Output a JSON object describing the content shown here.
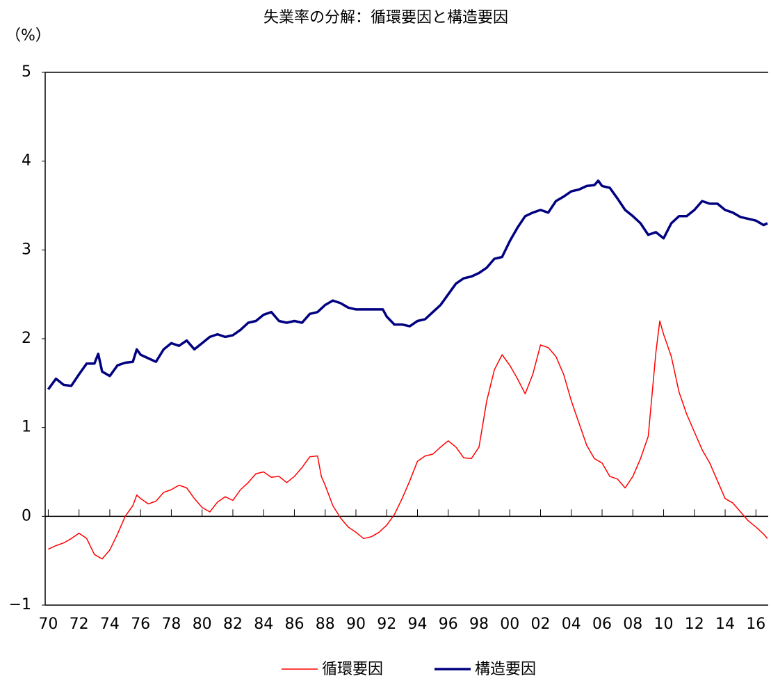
{
  "chart_data": {
    "type": "line",
    "title": "失業率の分解：循環要因と構造要因",
    "y_label": "（%）",
    "xlim": [
      1969.8,
      2016.8
    ],
    "xticks": [
      {
        "value": 1970,
        "label": "70"
      },
      {
        "value": 1972,
        "label": "72"
      },
      {
        "value": 1974,
        "label": "74"
      },
      {
        "value": 1976,
        "label": "76"
      },
      {
        "value": 1978,
        "label": "78"
      },
      {
        "value": 1980,
        "label": "80"
      },
      {
        "value": 1982,
        "label": "82"
      },
      {
        "value": 1984,
        "label": "84"
      },
      {
        "value": 1986,
        "label": "86"
      },
      {
        "value": 1988,
        "label": "88"
      },
      {
        "value": 1990,
        "label": "90"
      },
      {
        "value": 1992,
        "label": "92"
      },
      {
        "value": 1994,
        "label": "94"
      },
      {
        "value": 1996,
        "label": "96"
      },
      {
        "value": 1998,
        "label": "98"
      },
      {
        "value": 2000,
        "label": "00"
      },
      {
        "value": 2002,
        "label": "02"
      },
      {
        "value": 2004,
        "label": "04"
      },
      {
        "value": 2006,
        "label": "06"
      },
      {
        "value": 2008,
        "label": "08"
      },
      {
        "value": 2010,
        "label": "10"
      },
      {
        "value": 2012,
        "label": "12"
      },
      {
        "value": 2014,
        "label": "14"
      },
      {
        "value": 2016,
        "label": "16"
      }
    ],
    "ylim": [
      -1,
      5
    ],
    "yticks": [
      {
        "value": -1,
        "label": "−1"
      },
      0,
      1,
      2,
      3,
      4,
      5
    ],
    "series": [
      {
        "name": "循環要因",
        "color": "#ff0000",
        "width": 1.5,
        "x": [
          1970.0,
          1970.5,
          1971.0,
          1971.5,
          1972.0,
          1972.5,
          1973.0,
          1973.5,
          1974.0,
          1974.5,
          1975.0,
          1975.5,
          1975.75,
          1976.0,
          1976.5,
          1977.0,
          1977.5,
          1978.0,
          1978.5,
          1979.0,
          1979.5,
          1980.0,
          1980.5,
          1981.0,
          1981.5,
          1982.0,
          1982.5,
          1983.0,
          1983.5,
          1984.0,
          1984.5,
          1985.0,
          1985.5,
          1986.0,
          1986.5,
          1987.0,
          1987.5,
          1987.75,
          1988.0,
          1988.5,
          1989.0,
          1989.5,
          1990.0,
          1990.5,
          1991.0,
          1991.5,
          1992.0,
          1992.5,
          1993.0,
          1993.5,
          1994.0,
          1994.5,
          1995.0,
          1995.5,
          1996.0,
          1996.5,
          1997.0,
          1997.5,
          1998.0,
          1998.5,
          1999.0,
          1999.5,
          2000.0,
          2000.5,
          2001.0,
          2001.5,
          2002.0,
          2002.5,
          2003.0,
          2003.5,
          2004.0,
          2004.5,
          2005.0,
          2005.5,
          2006.0,
          2006.5,
          2007.0,
          2007.5,
          2008.0,
          2008.5,
          2009.0,
          2009.5,
          2009.75,
          2010.0,
          2010.5,
          2011.0,
          2011.5,
          2012.0,
          2012.5,
          2013.0,
          2013.5,
          2014.0,
          2014.5,
          2015.0,
          2015.5,
          2016.0,
          2016.5,
          2016.75
        ],
        "values": [
          -0.37,
          -0.33,
          -0.3,
          -0.25,
          -0.19,
          -0.25,
          -0.43,
          -0.48,
          -0.38,
          -0.2,
          0.0,
          0.12,
          0.24,
          0.2,
          0.14,
          0.17,
          0.27,
          0.3,
          0.35,
          0.32,
          0.2,
          0.1,
          0.05,
          0.16,
          0.22,
          0.18,
          0.3,
          0.38,
          0.48,
          0.5,
          0.44,
          0.45,
          0.38,
          0.45,
          0.55,
          0.67,
          0.68,
          0.45,
          0.35,
          0.12,
          -0.02,
          -0.12,
          -0.18,
          -0.25,
          -0.23,
          -0.18,
          -0.1,
          0.02,
          0.2,
          0.4,
          0.62,
          0.68,
          0.7,
          0.78,
          0.85,
          0.78,
          0.66,
          0.65,
          0.78,
          1.3,
          1.65,
          1.82,
          1.7,
          1.55,
          1.38,
          1.6,
          1.93,
          1.9,
          1.8,
          1.6,
          1.3,
          1.05,
          0.8,
          0.65,
          0.6,
          0.45,
          0.42,
          0.32,
          0.45,
          0.65,
          0.9,
          1.85,
          2.2,
          2.05,
          1.8,
          1.4,
          1.15,
          0.95,
          0.75,
          0.6,
          0.4,
          0.2,
          0.15,
          0.05,
          -0.05,
          -0.12,
          -0.2,
          -0.25
        ]
      },
      {
        "name": "構造要因",
        "color": "#000080",
        "width": 3.5,
        "x": [
          1970.0,
          1970.5,
          1971.0,
          1971.5,
          1972.0,
          1972.5,
          1973.0,
          1973.25,
          1973.5,
          1974.0,
          1974.5,
          1975.0,
          1975.5,
          1975.75,
          1976.0,
          1976.5,
          1977.0,
          1977.5,
          1978.0,
          1978.5,
          1979.0,
          1979.5,
          1980.0,
          1980.5,
          1981.0,
          1981.5,
          1982.0,
          1982.5,
          1983.0,
          1983.5,
          1984.0,
          1984.5,
          1985.0,
          1985.5,
          1986.0,
          1986.5,
          1987.0,
          1987.5,
          1988.0,
          1988.5,
          1989.0,
          1989.5,
          1990.0,
          1991.0,
          1991.75,
          1992.0,
          1992.5,
          1993.0,
          1993.5,
          1994.0,
          1994.5,
          1995.0,
          1995.5,
          1996.0,
          1996.5,
          1997.0,
          1997.5,
          1998.0,
          1998.5,
          1999.0,
          1999.5,
          2000.0,
          2000.5,
          2001.0,
          2001.5,
          2002.0,
          2002.5,
          2003.0,
          2003.5,
          2004.0,
          2004.5,
          2005.0,
          2005.5,
          2005.75,
          2006.0,
          2006.5,
          2007.0,
          2007.5,
          2008.0,
          2008.5,
          2009.0,
          2009.5,
          2010.0,
          2010.5,
          2011.0,
          2011.5,
          2012.0,
          2012.5,
          2013.0,
          2013.5,
          2014.0,
          2014.5,
          2015.0,
          2015.5,
          2016.0,
          2016.5,
          2016.75
        ],
        "values": [
          1.43,
          1.55,
          1.48,
          1.47,
          1.6,
          1.72,
          1.72,
          1.83,
          1.63,
          1.58,
          1.7,
          1.73,
          1.74,
          1.88,
          1.82,
          1.78,
          1.74,
          1.88,
          1.95,
          1.92,
          1.98,
          1.88,
          1.95,
          2.02,
          2.05,
          2.02,
          2.04,
          2.1,
          2.18,
          2.2,
          2.27,
          2.3,
          2.2,
          2.18,
          2.2,
          2.18,
          2.28,
          2.3,
          2.38,
          2.43,
          2.4,
          2.35,
          2.33,
          2.33,
          2.33,
          2.25,
          2.16,
          2.16,
          2.14,
          2.2,
          2.22,
          2.3,
          2.38,
          2.5,
          2.62,
          2.68,
          2.7,
          2.74,
          2.8,
          2.9,
          2.92,
          3.1,
          3.25,
          3.38,
          3.42,
          3.45,
          3.42,
          3.55,
          3.6,
          3.66,
          3.68,
          3.72,
          3.73,
          3.78,
          3.72,
          3.7,
          3.58,
          3.45,
          3.38,
          3.3,
          3.17,
          3.2,
          3.13,
          3.3,
          3.38,
          3.38,
          3.45,
          3.55,
          3.52,
          3.52,
          3.45,
          3.42,
          3.37,
          3.35,
          3.33,
          3.28,
          3.3
        ]
      }
    ]
  }
}
